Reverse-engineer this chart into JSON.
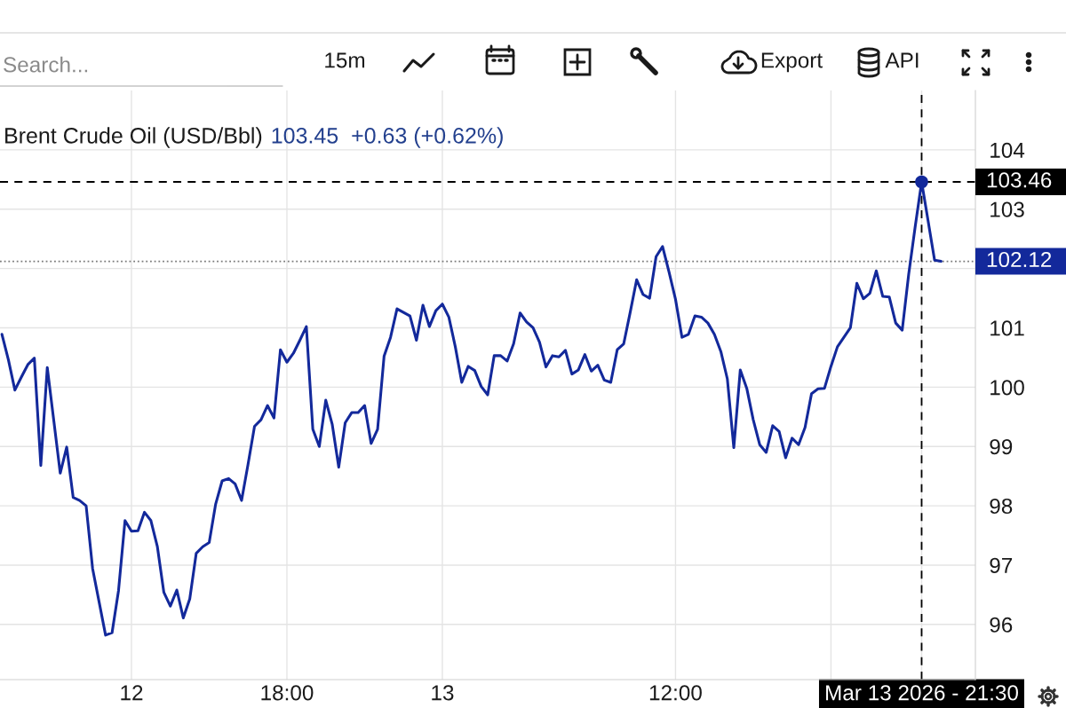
{
  "chart_data": {
    "type": "line",
    "title": "Brent Crude Oil (USD/Bbl)",
    "subtitle": "103.45  +0.63 (+0.62%)",
    "annotations": [
      "Search...",
      "15m",
      "Export",
      "API"
    ],
    "categories": [
      null,
      null,
      null,
      null,
      null,
      null,
      null,
      null,
      null,
      null,
      null,
      null,
      null,
      null,
      null,
      null,
      null,
      null,
      null,
      null,
      "12",
      null,
      null,
      null,
      null,
      null,
      null,
      null,
      null,
      null,
      null,
      null,
      null,
      null,
      null,
      null,
      null,
      null,
      null,
      null,
      null,
      null,
      null,
      null,
      "18:00",
      null,
      null,
      null,
      null,
      null,
      null,
      null,
      null,
      null,
      null,
      null,
      null,
      null,
      null,
      null,
      null,
      null,
      null,
      null,
      null,
      null,
      null,
      null,
      "13",
      null,
      null,
      null,
      null,
      null,
      null,
      null,
      null,
      null,
      null,
      null,
      null,
      null,
      null,
      null,
      null,
      null,
      null,
      null,
      null,
      null,
      null,
      null,
      null,
      null,
      null,
      null,
      null,
      null,
      null,
      null,
      null,
      null,
      null,
      null,
      "12:00",
      null,
      null,
      null,
      null,
      null,
      null,
      null,
      null,
      null,
      null,
      null,
      null,
      null,
      null,
      null,
      null,
      null,
      null,
      null,
      null,
      null,
      null,
      null,
      null,
      null,
      null,
      null,
      null,
      null,
      null,
      null,
      null,
      null,
      null,
      null,
      null,
      null,
      "Mar 13 2026 - 21:30",
      null,
      null,
      null
    ],
    "series": [
      {
        "color": "#13299b",
        "values": [
          100.89,
          100.46,
          99.95,
          100.17,
          100.38,
          100.49,
          98.68,
          100.33,
          99.44,
          98.55,
          98.99,
          98.14,
          98.09,
          98.0,
          96.94,
          96.38,
          95.82,
          95.86,
          96.57,
          97.75,
          97.57,
          97.58,
          97.89,
          97.75,
          97.31,
          96.54,
          96.31,
          96.58,
          96.11,
          96.43,
          97.2,
          97.31,
          97.38,
          98.03,
          98.42,
          98.46,
          98.37,
          98.09,
          98.7,
          99.34,
          99.45,
          99.69,
          99.48,
          100.63,
          100.42,
          100.57,
          100.79,
          101.02,
          99.29,
          99.0,
          99.78,
          99.37,
          98.65,
          99.4,
          99.57,
          99.57,
          99.69,
          99.05,
          99.29,
          100.52,
          100.84,
          101.32,
          101.26,
          101.2,
          100.79,
          101.38,
          101.02,
          101.29,
          101.4,
          101.18,
          100.68,
          100.08,
          100.35,
          100.28,
          100.01,
          99.87,
          100.53,
          100.53,
          100.44,
          100.73,
          101.25,
          101.1,
          101.0,
          100.76,
          100.34,
          100.53,
          100.51,
          100.62,
          100.22,
          100.29,
          100.55,
          100.27,
          100.37,
          100.12,
          100.08,
          100.63,
          100.73,
          101.26,
          101.81,
          101.56,
          101.5,
          102.2,
          102.37,
          101.94,
          101.48,
          100.84,
          100.89,
          101.2,
          101.18,
          101.08,
          100.89,
          100.6,
          100.14,
          98.98,
          100.29,
          99.98,
          99.45,
          99.03,
          98.9,
          99.35,
          99.25,
          98.81,
          99.14,
          99.03,
          99.32,
          99.89,
          99.97,
          99.98,
          100.35,
          100.68,
          100.84,
          101.0,
          101.75,
          101.49,
          101.58,
          101.96,
          101.53,
          101.52,
          101.08,
          100.96,
          101.9,
          102.7,
          103.46,
          102.8,
          102.14,
          102.12
        ]
      },
      {
        "type": "scatter",
        "color": "#13299b",
        "marker": "circle",
        "x": [
          "Mar 13 2026 - 21:30"
        ],
        "values": [
          103.46
        ]
      }
    ],
    "ylim": [
      95.07,
      105.0
    ],
    "yticks": [
      96,
      97,
      98,
      99,
      100,
      101,
      {
        "value": 102,
        "label": null
      },
      103,
      104
    ],
    "grid": true,
    "ref_lines": [
      {
        "axis": "y",
        "value": 103.46,
        "label": "103.46",
        "color": "#000000",
        "line_style": "dashed"
      },
      {
        "axis": "y",
        "value": 102.12,
        "label": "102.12",
        "color": "#7a7a7a",
        "line_style": "dotted"
      },
      {
        "axis": "x",
        "value": "Mar 13 2026 - 21:30",
        "color": "#000000",
        "line_style": "dashed"
      }
    ]
  }
}
